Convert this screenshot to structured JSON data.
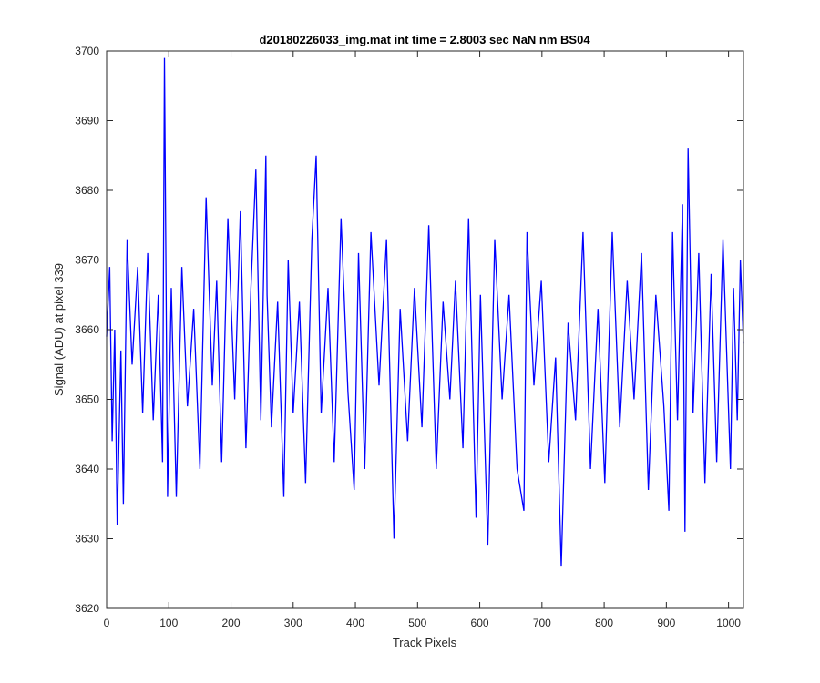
{
  "chart_data": {
    "type": "line",
    "title": "d20180226033_img.mat int time = 2.8003 sec  NaN nm BS04",
    "xlabel": "Track Pixels",
    "ylabel": "Signal (ADU) at pixel 339",
    "xlim": [
      0,
      1024
    ],
    "ylim": [
      3620,
      3700
    ],
    "xticks": [
      "0",
      "100",
      "200",
      "300",
      "400",
      "500",
      "600",
      "700",
      "800",
      "900",
      "1000"
    ],
    "yticks": [
      "3620",
      "3630",
      "3640",
      "3650",
      "3660",
      "3670",
      "3680",
      "3690",
      "3700"
    ],
    "grid": false,
    "line_color": "#0000ff",
    "series": [
      {
        "description": "Noisy signal, ~1024 samples, mean about 3657 ADU, typical spread 3645-3670 ADU",
        "x": [
          0,
          5,
          9,
          13,
          17,
          23,
          27,
          33,
          41,
          50,
          58,
          66,
          75,
          83,
          90,
          93,
          98,
          104,
          112,
          121,
          130,
          140,
          150,
          160,
          170,
          177,
          185,
          195,
          206,
          215,
          224,
          232,
          240,
          248,
          256,
          258,
          265,
          275,
          285,
          292,
          300,
          310,
          320,
          330,
          337,
          345,
          356,
          366,
          377,
          388,
          398,
          405,
          415,
          425,
          438,
          450,
          462,
          472,
          484,
          495,
          507,
          518,
          530,
          541,
          552,
          561,
          573,
          582,
          594,
          601,
          613,
          624,
          636,
          647,
          660,
          671,
          676,
          687,
          699,
          711,
          722,
          731,
          742,
          754,
          766,
          778,
          790,
          801,
          813,
          825,
          837,
          848,
          860,
          871,
          883,
          896,
          904,
          910,
          918,
          926,
          930,
          935,
          943,
          952,
          962,
          972,
          981,
          991,
          1003,
          1008,
          1014,
          1019,
          1024
        ],
        "y": [
          3659,
          3669,
          3644,
          3660,
          3632,
          3657,
          3635,
          3673,
          3655,
          3669,
          3648,
          3671,
          3647,
          3665,
          3641,
          3699,
          3636,
          3666,
          3636,
          3669,
          3649,
          3663,
          3640,
          3679,
          3652,
          3667,
          3641,
          3676,
          3650,
          3677,
          3643,
          3666,
          3683,
          3647,
          3685,
          3665,
          3646,
          3664,
          3636,
          3670,
          3648,
          3664,
          3638,
          3673,
          3685,
          3648,
          3666,
          3641,
          3676,
          3651,
          3637,
          3671,
          3640,
          3674,
          3652,
          3673,
          3630,
          3663,
          3644,
          3666,
          3646,
          3675,
          3640,
          3664,
          3650,
          3667,
          3643,
          3676,
          3633,
          3665,
          3629,
          3673,
          3650,
          3665,
          3640,
          3634,
          3674,
          3652,
          3667,
          3641,
          3656,
          3626,
          3661,
          3647,
          3674,
          3640,
          3663,
          3638,
          3674,
          3646,
          3667,
          3650,
          3671,
          3637,
          3665,
          3649,
          3634,
          3674,
          3647,
          3678,
          3631,
          3686,
          3648,
          3671,
          3638,
          3668,
          3641,
          3673,
          3640,
          3666,
          3647,
          3670,
          3658
        ]
      }
    ]
  }
}
